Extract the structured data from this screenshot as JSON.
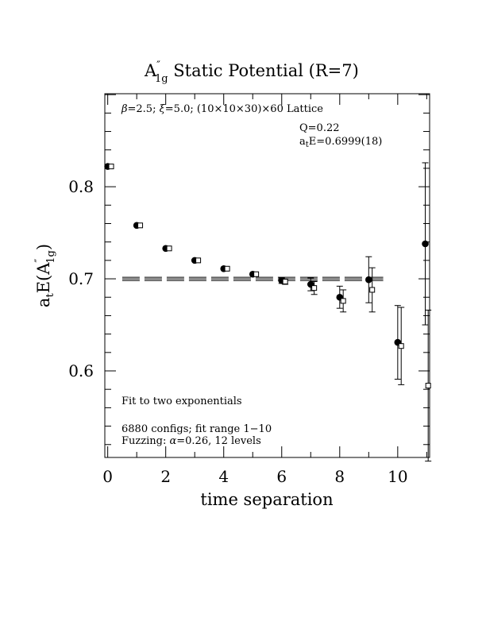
{
  "chart_data": {
    "type": "scatter",
    "title": "A″1g Static Potential (R=7)",
    "title_parts": {
      "base": "A",
      "prime": "″",
      "sub": "1g",
      "rest": " Static Potential (R=7)"
    },
    "xlabel": "time separation",
    "ylabel_parts": {
      "a": "a",
      "a_sub": "t",
      "mid": "E(A",
      "prime": "″",
      "sub": "1g",
      "close": ")"
    },
    "xlim": [
      -0.1,
      11.1
    ],
    "ylim": [
      0.506,
      0.901
    ],
    "x_ticks": [
      0,
      2,
      4,
      6,
      8,
      10
    ],
    "y_ticks": [
      0.6,
      0.7,
      0.8
    ],
    "x_tick_labels": [
      "0",
      "2",
      "4",
      "6",
      "8",
      "10"
    ],
    "y_tick_labels": [
      "0.6",
      "0.7",
      "0.8"
    ],
    "grid": false,
    "annotations": {
      "lattice_parts": {
        "beta": "β",
        "beta_val": "=2.5; ",
        "xi": "ξ",
        "xi_val": "=5.0; (10×10×30)×60 Lattice"
      },
      "q": "Q=0.22",
      "energy_parts": {
        "a": "a",
        "sub": "t",
        "rest": "E=0.6999(18)"
      },
      "fit_method": "Fit to two exponentials",
      "configs": "6880 configs; fit range 1−10",
      "fuzz_parts": {
        "pre": "Fuzzing: ",
        "alpha": "α",
        "rest": "=0.26, 12 levels"
      }
    },
    "fit": {
      "value": 0.6999,
      "error": 0.0018,
      "x_range": [
        0.5,
        9.5
      ]
    },
    "series": [
      {
        "marker": "filled-circle",
        "points": [
          {
            "x": 0,
            "y": 0.822,
            "err": 0
          },
          {
            "x": 1,
            "y": 0.758,
            "err": 0
          },
          {
            "x": 2,
            "y": 0.733,
            "err": 0
          },
          {
            "x": 3,
            "y": 0.72,
            "err": 0
          },
          {
            "x": 4,
            "y": 0.711,
            "err": 0
          },
          {
            "x": 5,
            "y": 0.705,
            "err": 0
          },
          {
            "x": 6,
            "y": 0.698,
            "err": 0.003
          },
          {
            "x": 7,
            "y": 0.694,
            "err": 0.007
          },
          {
            "x": 8,
            "y": 0.68,
            "err": 0.012
          },
          {
            "x": 9,
            "y": 0.699,
            "err": 0.025
          },
          {
            "x": 10,
            "y": 0.631,
            "err": 0.04
          },
          {
            "x": 10.95,
            "y": 0.738,
            "err": 0.088
          }
        ]
      },
      {
        "marker": "open-square",
        "points": [
          {
            "x": 0.12,
            "y": 0.822,
            "err": 0
          },
          {
            "x": 1.12,
            "y": 0.758,
            "err": 0
          },
          {
            "x": 2.12,
            "y": 0.733,
            "err": 0
          },
          {
            "x": 3.12,
            "y": 0.72,
            "err": 0
          },
          {
            "x": 4.12,
            "y": 0.711,
            "err": 0
          },
          {
            "x": 5.12,
            "y": 0.705,
            "err": 0
          },
          {
            "x": 6.12,
            "y": 0.697,
            "err": 0.003
          },
          {
            "x": 7.12,
            "y": 0.69,
            "err": 0.007
          },
          {
            "x": 8.12,
            "y": 0.676,
            "err": 0.012
          },
          {
            "x": 9.12,
            "y": 0.688,
            "err": 0.024
          },
          {
            "x": 10.12,
            "y": 0.627,
            "err": 0.042
          },
          {
            "x": 11.05,
            "y": 0.584,
            "err": 0.082
          }
        ]
      }
    ]
  }
}
